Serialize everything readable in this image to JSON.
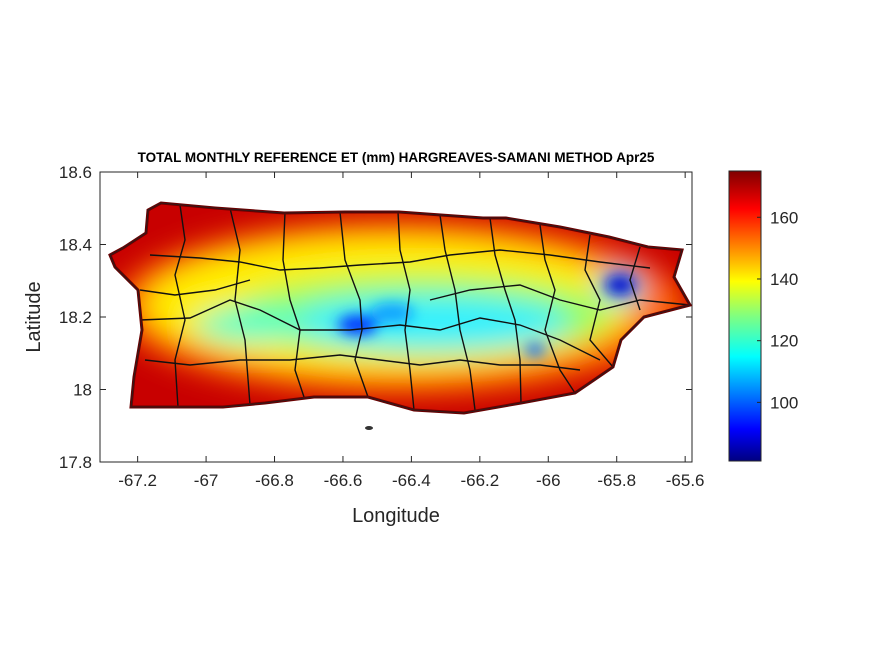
{
  "chart_data": {
    "type": "heatmap",
    "title": "TOTAL MONTHLY REFERENCE ET (mm) HARGREAVES-SAMANI METHOD Apr25",
    "xlabel": "Longitude",
    "ylabel": "Latitude",
    "xlim": [
      -67.31,
      -65.58
    ],
    "ylim": [
      17.8,
      18.6
    ],
    "xticks": [
      "-67.2",
      "-67",
      "-66.8",
      "-66.6",
      "-66.4",
      "-66.2",
      "-66",
      "-65.8",
      "-65.6"
    ],
    "xtick_values": [
      -67.2,
      -67.0,
      -66.8,
      -66.6,
      -66.4,
      -66.2,
      -66.0,
      -65.8,
      -65.6
    ],
    "yticks": [
      "17.8",
      "18",
      "18.2",
      "18.4",
      "18.6"
    ],
    "ytick_values": [
      17.8,
      18.0,
      18.2,
      18.4,
      18.6
    ],
    "colorbar": {
      "colormap": "jet",
      "range": [
        81,
        175
      ],
      "ticks": [
        "100",
        "120",
        "140",
        "160"
      ],
      "tick_values": [
        100,
        120,
        140,
        160
      ]
    },
    "grid": false,
    "description_values": {
      "coastal_range": [
        150,
        175
      ],
      "interior_range": [
        110,
        130
      ],
      "minimum_areas": [
        [
          -66.57,
          18.16
        ],
        [
          -65.8,
          18.28
        ],
        [
          -66.05,
          18.11
        ]
      ]
    }
  }
}
